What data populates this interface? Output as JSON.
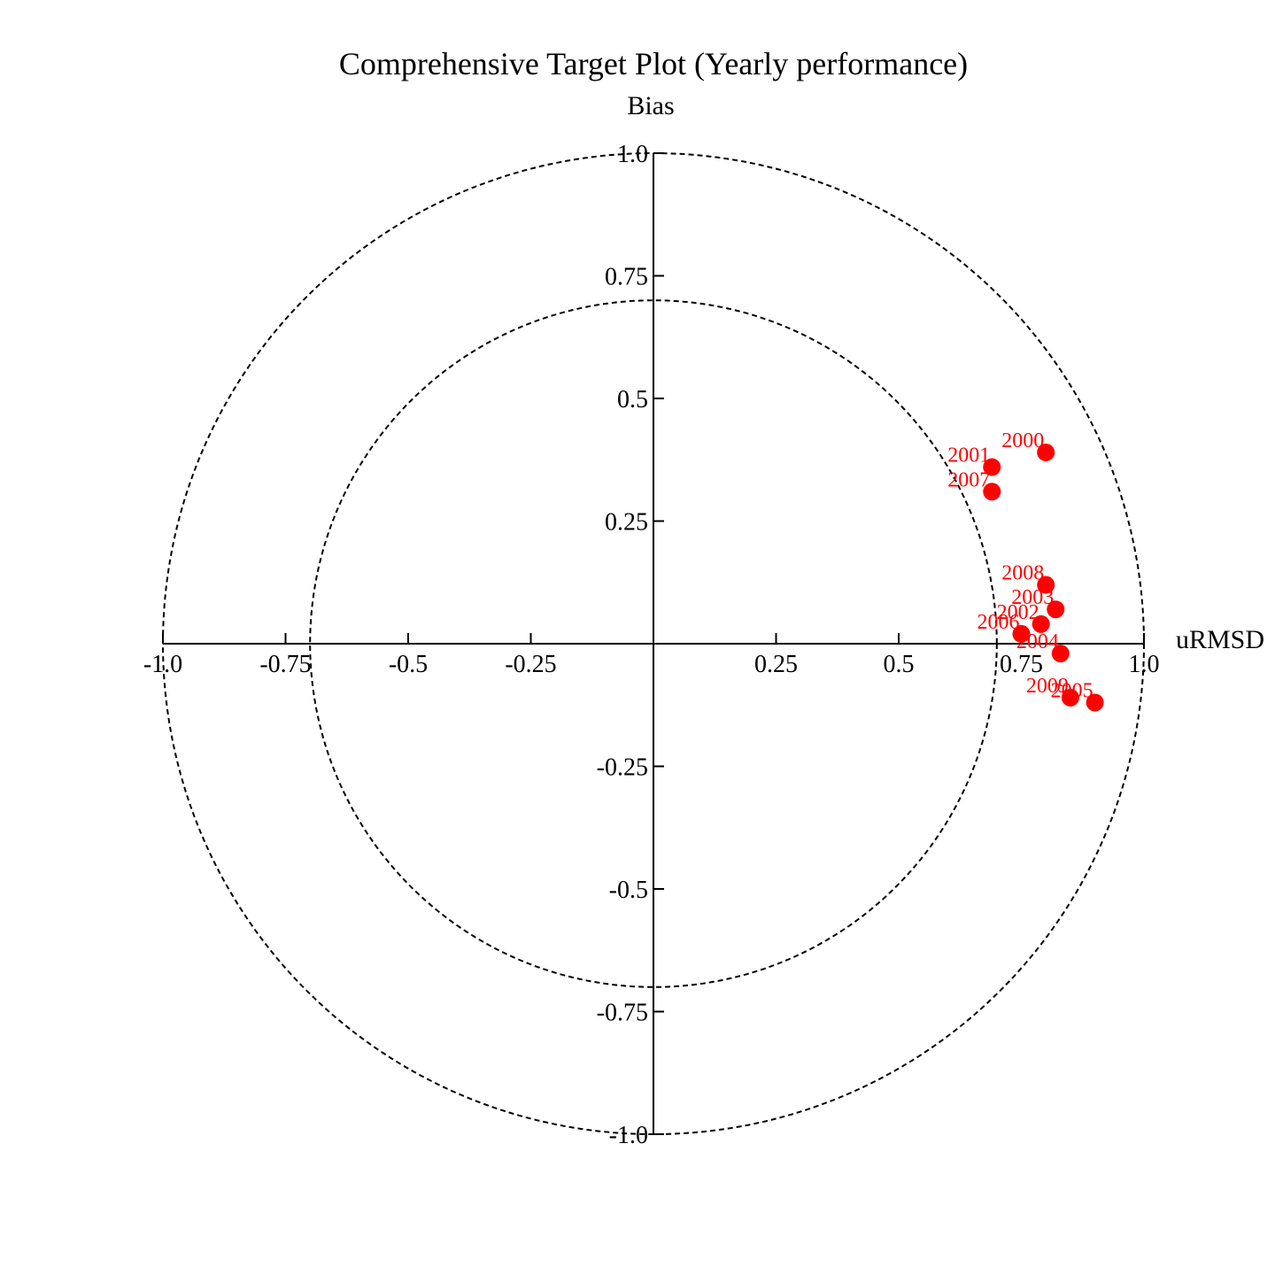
{
  "chart_data": {
    "type": "scatter",
    "title": "Comprehensive Target Plot (Yearly performance)",
    "xlabel": "uRMSD",
    "ylabel": "Bias",
    "xlim": [
      -1.0,
      1.0
    ],
    "ylim": [
      -1.0,
      1.0
    ],
    "x_tick_labels": [
      "-1.0",
      "-0.75",
      "-0.5",
      "-0.25",
      "0.25",
      "0.5",
      "0.75",
      "1.0"
    ],
    "y_tick_labels": [
      "1.0",
      "0.75",
      "0.5",
      "0.25",
      "-0.25",
      "-0.5",
      "-0.75",
      "-1.0"
    ],
    "x_ticks": [
      -1.0,
      -0.75,
      -0.5,
      -0.25,
      0.25,
      0.5,
      0.75,
      1.0
    ],
    "y_ticks": [
      1.0,
      0.75,
      0.5,
      0.25,
      -0.25,
      -0.5,
      -0.75,
      -1.0
    ],
    "reference_circles": [
      0.7,
      1.0
    ],
    "grid": false,
    "marker_color": "#ff0000",
    "points": [
      {
        "label": "2000",
        "x": 0.8,
        "y": 0.39
      },
      {
        "label": "2001",
        "x": 0.69,
        "y": 0.36
      },
      {
        "label": "2007",
        "x": 0.69,
        "y": 0.31
      },
      {
        "label": "2008",
        "x": 0.8,
        "y": 0.12
      },
      {
        "label": "2003",
        "x": 0.82,
        "y": 0.07
      },
      {
        "label": "2002",
        "x": 0.79,
        "y": 0.04
      },
      {
        "label": "2006",
        "x": 0.75,
        "y": 0.02
      },
      {
        "label": "2004",
        "x": 0.83,
        "y": -0.02
      },
      {
        "label": "2009",
        "x": 0.85,
        "y": -0.11
      },
      {
        "label": "2005",
        "x": 0.9,
        "y": -0.12
      }
    ]
  }
}
